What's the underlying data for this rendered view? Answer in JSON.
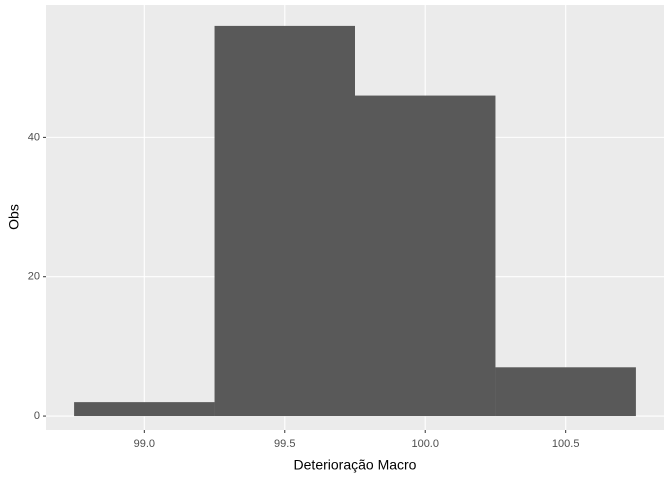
{
  "chart_data": {
    "type": "histogram",
    "bins": [
      98.75,
      99.25,
      99.75,
      100.25,
      100.75
    ],
    "values": [
      2,
      56,
      46,
      7
    ],
    "color": "#595959",
    "x_label": "Deterioração Macro",
    "y_label": "Obs",
    "xlim": [
      98.65,
      100.85
    ],
    "ylim": [
      -2,
      59
    ],
    "xticks": [
      {
        "value": 99.0,
        "label": "99.0"
      },
      {
        "value": 99.5,
        "label": "99.5"
      },
      {
        "value": 100.0,
        "label": "100.0"
      },
      {
        "value": 100.5,
        "label": "100.5"
      }
    ],
    "yticks": [
      0,
      20,
      40
    ],
    "grid": true
  }
}
